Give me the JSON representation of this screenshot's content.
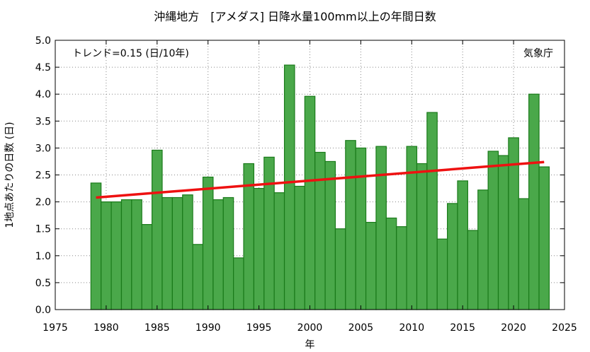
{
  "chart_data": {
    "type": "bar",
    "title": "沖縄地方　[アメダス] 日降水量100mm以上の年間日数",
    "xlabel": "年",
    "ylabel": "1地点あたりの日数 (日)",
    "trend_label": "トレンド=0.15 (日/10年)",
    "source_label": "気象庁",
    "xlim": [
      1975,
      2025
    ],
    "ylim": [
      0,
      5
    ],
    "x_ticks": [
      1975,
      1980,
      1985,
      1990,
      1995,
      2000,
      2005,
      2010,
      2015,
      2020,
      2025
    ],
    "y_ticks": [
      "0.0",
      "0.5",
      "1.0",
      "1.5",
      "2.0",
      "2.5",
      "3.0",
      "3.5",
      "4.0",
      "4.5",
      "5.0"
    ],
    "grid": true,
    "bar_color": "#4aa84a",
    "bar_edge_color": "#1a7a1a",
    "trend_color": "#ee1111",
    "series": [
      {
        "x": [
          1979,
          1980,
          1981,
          1982,
          1983,
          1984,
          1985,
          1986,
          1987,
          1988,
          1989,
          1990,
          1991,
          1992,
          1993,
          1994,
          1995,
          1996,
          1997,
          1998,
          1999,
          2000,
          2001,
          2002,
          2003,
          2004,
          2005,
          2006,
          2007,
          2008,
          2009,
          2010,
          2011,
          2012,
          2013,
          2014,
          2015,
          2016,
          2017,
          2018,
          2019,
          2020,
          2021,
          2022,
          2023
        ],
        "values": [
          2.35,
          2.0,
          2.0,
          2.04,
          2.04,
          1.58,
          2.96,
          2.08,
          2.08,
          2.13,
          1.21,
          2.46,
          2.04,
          2.08,
          0.96,
          2.71,
          2.25,
          2.83,
          2.17,
          4.54,
          2.29,
          3.96,
          2.92,
          2.75,
          1.5,
          3.14,
          3.0,
          1.62,
          3.03,
          1.7,
          1.54,
          3.03,
          2.71,
          3.66,
          1.31,
          1.97,
          2.39,
          1.47,
          2.22,
          2.94,
          2.86,
          3.19,
          2.06,
          4.0,
          2.65
        ]
      }
    ],
    "trend": {
      "x": [
        1979,
        2023
      ],
      "y": [
        2.08,
        2.74
      ]
    }
  }
}
